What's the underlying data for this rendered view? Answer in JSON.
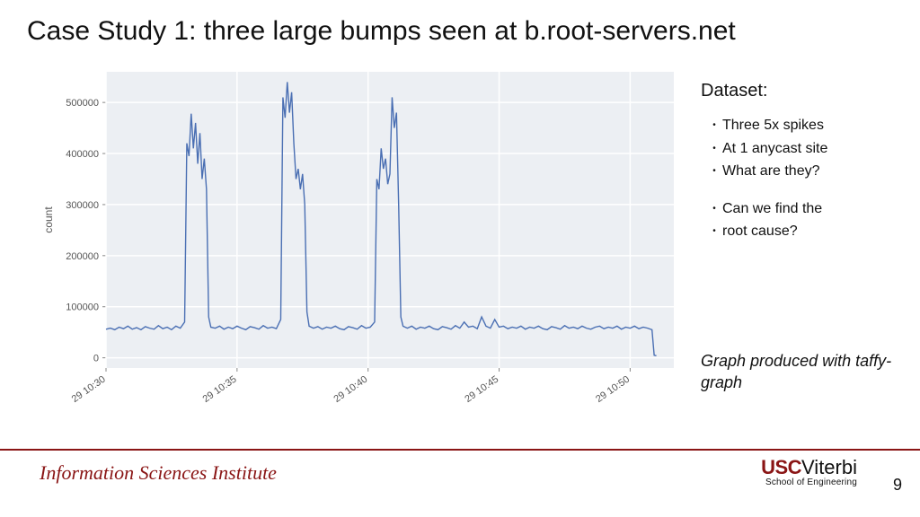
{
  "title": "Case Study 1: three large bumps seen at b.root-servers.net",
  "sidebar": {
    "heading": "Dataset:",
    "bullets1": [
      "Three 5x spikes",
      "At 1 anycast site",
      "What are they?"
    ],
    "bullets2": [
      "Can we find the",
      "root cause?"
    ]
  },
  "caption": "Graph produced with taffy-graph",
  "footer": {
    "left": "Information Sciences Institute",
    "usc": "USC",
    "viterbi": "Viterbi",
    "soe": "School of Engineering",
    "pagenum": "9"
  },
  "chart": {
    "type": "line",
    "background_color": "#ffffff",
    "plot_bg": "#eceff3",
    "grid_color": "#ffffff",
    "line_color": "#4a6fb3",
    "line_width": 1.4,
    "ylabel": "count",
    "label_fontsize": 12,
    "tick_fontsize": 11,
    "tick_color": "#555",
    "ylim": [
      -20000,
      560000
    ],
    "ytick_step": 100000,
    "yticks": [
      0,
      100000,
      200000,
      300000,
      400000,
      500000
    ],
    "xticks": [
      "29 10:30",
      "29 10:35",
      "29 10:40",
      "29 10:45",
      "29 10:50"
    ],
    "xtick_positions": [
      0,
      60,
      120,
      180,
      240
    ],
    "x_range": [
      0,
      260
    ],
    "series": [
      [
        0,
        56000
      ],
      [
        2,
        58000
      ],
      [
        4,
        55000
      ],
      [
        6,
        60000
      ],
      [
        8,
        57000
      ],
      [
        10,
        62000
      ],
      [
        12,
        56000
      ],
      [
        14,
        59000
      ],
      [
        16,
        55000
      ],
      [
        18,
        61000
      ],
      [
        20,
        58000
      ],
      [
        22,
        56000
      ],
      [
        24,
        63000
      ],
      [
        26,
        57000
      ],
      [
        28,
        60000
      ],
      [
        30,
        55000
      ],
      [
        32,
        62000
      ],
      [
        34,
        58000
      ],
      [
        36,
        70000
      ],
      [
        37,
        420000
      ],
      [
        38,
        395000
      ],
      [
        39,
        478000
      ],
      [
        40,
        410000
      ],
      [
        41,
        460000
      ],
      [
        42,
        380000
      ],
      [
        43,
        440000
      ],
      [
        44,
        350000
      ],
      [
        45,
        390000
      ],
      [
        46,
        330000
      ],
      [
        47,
        80000
      ],
      [
        48,
        60000
      ],
      [
        50,
        58000
      ],
      [
        52,
        62000
      ],
      [
        54,
        56000
      ],
      [
        56,
        60000
      ],
      [
        58,
        57000
      ],
      [
        60,
        62000
      ],
      [
        62,
        58000
      ],
      [
        64,
        55000
      ],
      [
        66,
        61000
      ],
      [
        68,
        59000
      ],
      [
        70,
        56000
      ],
      [
        72,
        63000
      ],
      [
        74,
        58000
      ],
      [
        76,
        60000
      ],
      [
        78,
        57000
      ],
      [
        80,
        75000
      ],
      [
        81,
        510000
      ],
      [
        82,
        470000
      ],
      [
        83,
        540000
      ],
      [
        84,
        480000
      ],
      [
        85,
        520000
      ],
      [
        86,
        420000
      ],
      [
        87,
        350000
      ],
      [
        88,
        370000
      ],
      [
        89,
        330000
      ],
      [
        90,
        360000
      ],
      [
        91,
        300000
      ],
      [
        92,
        90000
      ],
      [
        93,
        62000
      ],
      [
        95,
        58000
      ],
      [
        97,
        61000
      ],
      [
        99,
        56000
      ],
      [
        101,
        60000
      ],
      [
        103,
        58000
      ],
      [
        105,
        62000
      ],
      [
        107,
        57000
      ],
      [
        109,
        55000
      ],
      [
        111,
        61000
      ],
      [
        113,
        59000
      ],
      [
        115,
        56000
      ],
      [
        117,
        63000
      ],
      [
        119,
        58000
      ],
      [
        121,
        60000
      ],
      [
        123,
        70000
      ],
      [
        124,
        350000
      ],
      [
        125,
        330000
      ],
      [
        126,
        410000
      ],
      [
        127,
        370000
      ],
      [
        128,
        390000
      ],
      [
        129,
        340000
      ],
      [
        130,
        360000
      ],
      [
        131,
        510000
      ],
      [
        132,
        450000
      ],
      [
        133,
        480000
      ],
      [
        134,
        300000
      ],
      [
        135,
        80000
      ],
      [
        136,
        62000
      ],
      [
        138,
        58000
      ],
      [
        140,
        62000
      ],
      [
        142,
        56000
      ],
      [
        144,
        60000
      ],
      [
        146,
        58000
      ],
      [
        148,
        62000
      ],
      [
        150,
        57000
      ],
      [
        152,
        55000
      ],
      [
        154,
        61000
      ],
      [
        156,
        59000
      ],
      [
        158,
        56000
      ],
      [
        160,
        63000
      ],
      [
        162,
        58000
      ],
      [
        164,
        70000
      ],
      [
        166,
        60000
      ],
      [
        168,
        62000
      ],
      [
        170,
        57000
      ],
      [
        172,
        80000
      ],
      [
        174,
        62000
      ],
      [
        176,
        58000
      ],
      [
        178,
        75000
      ],
      [
        180,
        60000
      ],
      [
        182,
        62000
      ],
      [
        184,
        57000
      ],
      [
        186,
        60000
      ],
      [
        188,
        58000
      ],
      [
        190,
        62000
      ],
      [
        192,
        56000
      ],
      [
        194,
        60000
      ],
      [
        196,
        58000
      ],
      [
        198,
        62000
      ],
      [
        200,
        57000
      ],
      [
        202,
        55000
      ],
      [
        204,
        61000
      ],
      [
        206,
        59000
      ],
      [
        208,
        56000
      ],
      [
        210,
        63000
      ],
      [
        212,
        58000
      ],
      [
        214,
        60000
      ],
      [
        216,
        57000
      ],
      [
        218,
        62000
      ],
      [
        220,
        58000
      ],
      [
        222,
        56000
      ],
      [
        224,
        60000
      ],
      [
        226,
        62000
      ],
      [
        228,
        57000
      ],
      [
        230,
        60000
      ],
      [
        232,
        58000
      ],
      [
        234,
        62000
      ],
      [
        236,
        56000
      ],
      [
        238,
        60000
      ],
      [
        240,
        58000
      ],
      [
        242,
        62000
      ],
      [
        244,
        57000
      ],
      [
        246,
        60000
      ],
      [
        248,
        58000
      ],
      [
        250,
        55000
      ],
      [
        251,
        5000
      ],
      [
        252,
        4000
      ]
    ]
  }
}
